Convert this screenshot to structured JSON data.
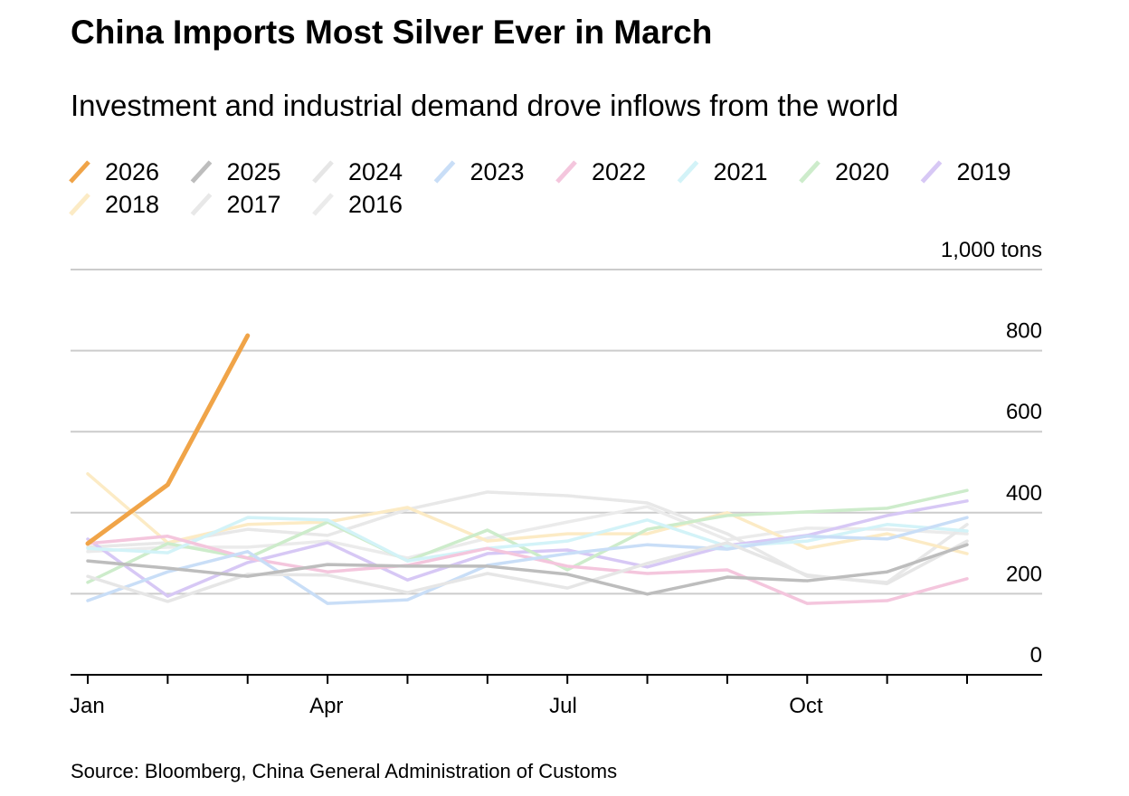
{
  "chart_data": {
    "type": "line",
    "title": "China Imports Most Silver Ever in March",
    "subtitle": "Investment and industrial demand drove inflows from the world",
    "source": "Source: Bloomberg, China General Administration of Customs",
    "categories": [
      "Jan",
      null,
      null,
      "Apr",
      null,
      null,
      "Jul",
      null,
      null,
      "Oct",
      null,
      null
    ],
    "ylim": [
      0,
      1000
    ],
    "yticks": [
      0,
      200,
      400,
      600,
      800,
      {
        "value": 1000,
        "label": "1,000 tons"
      }
    ],
    "grid": true,
    "series": [
      {
        "name": "2026",
        "color": "#f0a448",
        "values": [
          324,
          469,
          837,
          null,
          null,
          null,
          null,
          null,
          null,
          null,
          null,
          null
        ]
      },
      {
        "name": "2025",
        "color": "#bdbdbd",
        "values": [
          281,
          263,
          243,
          272,
          268,
          268,
          248,
          199,
          241,
          232,
          254,
          321
        ]
      },
      {
        "name": "2024",
        "color": "#e6e6e6",
        "values": [
          243,
          181,
          248,
          246,
          203,
          250,
          214,
          275,
          326,
          246,
          225,
          330
        ]
      },
      {
        "name": "2023",
        "color": "#c9def7",
        "values": [
          183,
          254,
          304,
          176,
          185,
          270,
          299,
          321,
          310,
          342,
          335,
          388
        ]
      },
      {
        "name": "2022",
        "color": "#f4c6dd",
        "values": [
          324,
          342,
          288,
          254,
          270,
          312,
          268,
          250,
          259,
          176,
          183,
          237
        ]
      },
      {
        "name": "2021",
        "color": "#d3f3f8",
        "values": [
          312,
          301,
          388,
          382,
          281,
          312,
          330,
          382,
          317,
          330,
          371,
          355
        ]
      },
      {
        "name": "2020",
        "color": "#cdeccb",
        "values": [
          228,
          324,
          288,
          377,
          281,
          357,
          259,
          359,
          393,
          402,
          411,
          455
        ]
      },
      {
        "name": "2019",
        "color": "#d7c8f5",
        "values": [
          335,
          194,
          277,
          326,
          234,
          299,
          308,
          266,
          319,
          344,
          393,
          429
        ]
      },
      {
        "name": "2018",
        "color": "#fcebc5",
        "values": [
          496,
          326,
          371,
          377,
          413,
          330,
          348,
          348,
          400,
          312,
          348,
          299
        ]
      },
      {
        "name": "2017",
        "color": "#e8e8e8",
        "values": [
          315,
          326,
          359,
          344,
          408,
          451,
          442,
          424,
          348,
          243,
          228,
          371
        ]
      },
      {
        "name": "2016",
        "color": "#ebebeb",
        "values": [
          304,
          315,
          315,
          330,
          288,
          337,
          377,
          415,
          333,
          362,
          359,
          348
        ]
      }
    ]
  }
}
